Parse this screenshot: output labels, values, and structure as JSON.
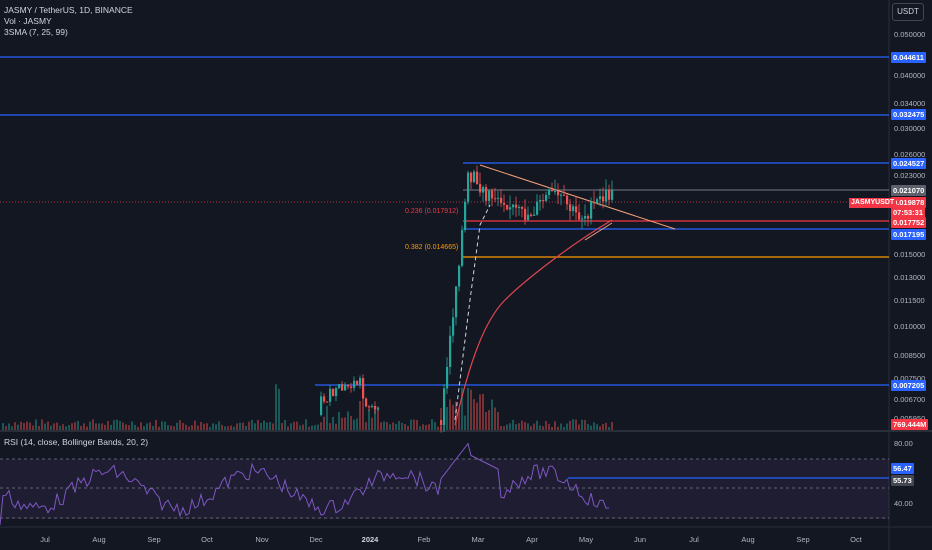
{
  "header": {
    "title_line": "JASMY / TetherUS, 1D, BINANCE",
    "volume_line": "Vol · JASMY",
    "sma_line": "3SMA (7, 25, 99)",
    "currency_button": "USDT"
  },
  "rsi": {
    "label": "RSI (14, close, Bollinger Bands, 20, 2)",
    "axis": [
      {
        "text": "80.00"
      },
      {
        "text": "40.00"
      }
    ],
    "tags": [
      {
        "text": "56.47",
        "color": "#2962ff"
      },
      {
        "text": "55.73",
        "color": "#434651"
      }
    ]
  },
  "price_axis": [
    {
      "text": "0.050000"
    },
    {
      "text": "0.040000"
    },
    {
      "text": "0.034000"
    },
    {
      "text": "0.030000"
    },
    {
      "text": "0.026000"
    },
    {
      "text": "0.023000"
    },
    {
      "text": "0.015000"
    },
    {
      "text": "0.013000"
    },
    {
      "text": "0.011500"
    },
    {
      "text": "0.010000"
    },
    {
      "text": "0.008500"
    },
    {
      "text": "0.007500"
    },
    {
      "text": "0.006700"
    },
    {
      "text": "0.005950"
    }
  ],
  "price_tags": [
    {
      "text": "0.044611",
      "color": "#2962ff"
    },
    {
      "text": "0.032475",
      "color": "#2962ff"
    },
    {
      "text": "0.024527",
      "color": "#2962ff"
    },
    {
      "text": "0.021070",
      "color": "#5d606b"
    },
    {
      "text": "0.019878",
      "color": "#f23645"
    },
    {
      "text": "07:53:31",
      "color": "#f23645"
    },
    {
      "text": "0.017752",
      "color": "#f23645"
    },
    {
      "text": "0.017195",
      "color": "#2962ff"
    },
    {
      "text": "0.007205",
      "color": "#2962ff"
    },
    {
      "text": "769.444M",
      "color": "#f23645"
    }
  ],
  "symbol_tag": "JASMYUSDT",
  "fib_labels": [
    {
      "text": "0.236 (0.017912)",
      "color": "#f23645"
    },
    {
      "text": "0.382 (0.014665)",
      "color": "#ff9800"
    }
  ],
  "time_axis": [
    {
      "text": "Jul",
      "bold": false
    },
    {
      "text": "Aug",
      "bold": false
    },
    {
      "text": "Sep",
      "bold": false
    },
    {
      "text": "Oct",
      "bold": false
    },
    {
      "text": "Nov",
      "bold": false
    },
    {
      "text": "Dec",
      "bold": false
    },
    {
      "text": "2024",
      "bold": true
    },
    {
      "text": "Feb",
      "bold": false
    },
    {
      "text": "Mar",
      "bold": false
    },
    {
      "text": "Apr",
      "bold": false
    },
    {
      "text": "May",
      "bold": false
    },
    {
      "text": "Jun",
      "bold": false
    },
    {
      "text": "Jul",
      "bold": false
    },
    {
      "text": "Aug",
      "bold": false
    },
    {
      "text": "Sep",
      "bold": false
    },
    {
      "text": "Oct",
      "bold": false
    }
  ],
  "colors": {
    "background": "#131722",
    "up": "#26a69a",
    "down": "#ef5350",
    "horizontal_level": "#2962ff",
    "sma_long": "#e0464e",
    "rsi_line": "#7e57c2",
    "fib_236": "#f23645",
    "fib_382": "#ff9800",
    "trendline": "#f7a17a"
  }
}
